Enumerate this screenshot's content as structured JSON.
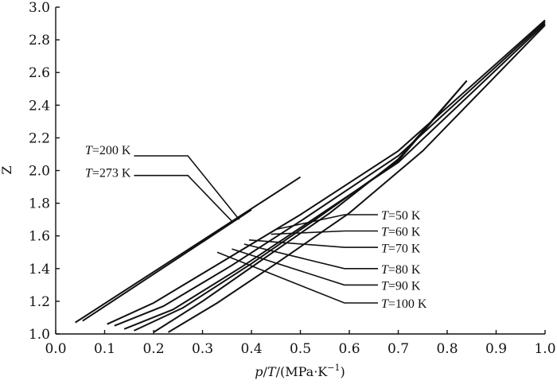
{
  "chart_data": {
    "type": "line",
    "title": "",
    "xlabel": "p/T/(MPa·K⁻¹)",
    "xlabel_parts": {
      "var1": "p",
      "sep1": "/",
      "var2": "T",
      "unit": "/(MPa·K",
      "sup": "−1",
      "close": ")"
    },
    "ylabel": "Z",
    "xlim": [
      0.0,
      1.0
    ],
    "ylim": [
      1.0,
      3.0
    ],
    "x_ticks": [
      "0.0",
      "0.1",
      "0.2",
      "0.3",
      "0.4",
      "0.5",
      "0.6",
      "0.7",
      "0.8",
      "0.9",
      "1.0"
    ],
    "y_ticks": [
      "1.0",
      "1.2",
      "1.4",
      "1.6",
      "1.8",
      "2.0",
      "2.2",
      "2.4",
      "2.6",
      "2.8",
      "3.0"
    ],
    "grid": false,
    "series": [
      {
        "name": "T=200 K",
        "x": [
          0.04,
          0.5
        ],
        "y": [
          1.07,
          1.96
        ]
      },
      {
        "name": "T=273 K",
        "x": [
          0.055,
          0.4
        ],
        "y": [
          1.08,
          1.76
        ]
      },
      {
        "name": "T=50 K",
        "x": [
          0.105,
          0.2,
          0.35,
          0.5,
          0.7,
          1.0
        ],
        "y": [
          1.06,
          1.19,
          1.46,
          1.73,
          2.12,
          2.92
        ]
      },
      {
        "name": "T=60 K",
        "x": [
          0.12,
          0.22,
          0.36,
          0.5,
          0.7,
          1.0
        ],
        "y": [
          1.05,
          1.17,
          1.42,
          1.69,
          2.09,
          2.91
        ]
      },
      {
        "name": "T=70 K",
        "x": [
          0.14,
          0.24,
          0.38,
          0.52,
          0.7,
          1.0
        ],
        "y": [
          1.03,
          1.15,
          1.41,
          1.69,
          2.05,
          2.9
        ]
      },
      {
        "name": "T=80 K",
        "x": [
          0.16,
          0.26,
          0.4,
          0.54,
          0.7,
          0.84
        ],
        "y": [
          1.02,
          1.16,
          1.43,
          1.72,
          2.06,
          2.55
        ]
      },
      {
        "name": "T=90 K",
        "x": [
          0.2,
          0.3,
          0.42,
          0.56,
          0.7,
          0.84
        ],
        "y": [
          1.01,
          1.2,
          1.45,
          1.74,
          2.07,
          2.55
        ]
      },
      {
        "name": "T=100 K",
        "x": [
          0.23,
          0.33,
          0.45,
          0.6,
          0.75,
          1.0
        ],
        "y": [
          1.01,
          1.19,
          1.43,
          1.74,
          2.12,
          2.89
        ]
      }
    ],
    "annotations": [
      {
        "label": "T=200 K",
        "var": "T",
        "rest": "=200 K",
        "text_at": [
          0.06,
          2.1
        ],
        "elbow": [
          0.27,
          2.09
        ],
        "point": [
          0.375,
          1.7
        ]
      },
      {
        "label": "T=273 K",
        "var": "T",
        "rest": "=273 K",
        "text_at": [
          0.06,
          1.96
        ],
        "elbow": [
          0.27,
          1.97
        ],
        "point": [
          0.36,
          1.69
        ]
      },
      {
        "label": "T=50 K",
        "var": "T",
        "rest": "=50 K",
        "text_at": [
          0.665,
          1.7
        ],
        "elbow": [
          0.59,
          1.73
        ],
        "point": [
          0.45,
          1.64
        ]
      },
      {
        "label": "T=60 K",
        "var": "T",
        "rest": "=60 K",
        "text_at": [
          0.665,
          1.6
        ],
        "elbow": [
          0.59,
          1.63
        ],
        "point": [
          0.44,
          1.61
        ]
      },
      {
        "label": "T=70 K",
        "var": "T",
        "rest": "=70 K",
        "text_at": [
          0.665,
          1.5
        ],
        "elbow": [
          0.59,
          1.53
        ],
        "point": [
          0.395,
          1.575
        ]
      },
      {
        "label": "T=80 K",
        "var": "T",
        "rest": "=80 K",
        "text_at": [
          0.665,
          1.37
        ],
        "elbow": [
          0.59,
          1.4
        ],
        "point": [
          0.385,
          1.55
        ]
      },
      {
        "label": "T=90 K",
        "var": "T",
        "rest": "=90 K",
        "text_at": [
          0.665,
          1.27
        ],
        "elbow": [
          0.59,
          1.3
        ],
        "point": [
          0.36,
          1.52
        ]
      },
      {
        "label": "T=100 K",
        "var": "T",
        "rest": "=100 K",
        "text_at": [
          0.665,
          1.16
        ],
        "elbow": [
          0.59,
          1.19
        ],
        "point": [
          0.33,
          1.5
        ]
      }
    ]
  }
}
